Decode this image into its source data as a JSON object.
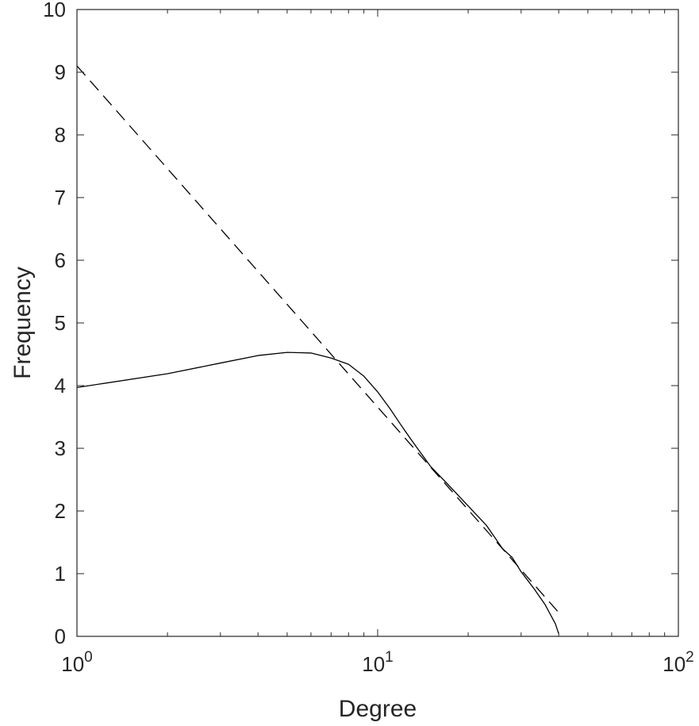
{
  "chart_data": {
    "type": "line",
    "title": "",
    "xlabel": "Degree",
    "ylabel": "Frequency",
    "x_scale": "log",
    "xlim": [
      1,
      100
    ],
    "ylim": [
      0,
      10
    ],
    "grid": false,
    "x_ticks": [
      {
        "value": 1,
        "base": "10",
        "exp": "0"
      },
      {
        "value": 10,
        "base": "10",
        "exp": "1"
      },
      {
        "value": 100,
        "base": "10",
        "exp": "2"
      }
    ],
    "y_ticks": [
      "0",
      "1",
      "2",
      "3",
      "4",
      "5",
      "6",
      "7",
      "8",
      "9",
      "10"
    ],
    "series": [
      {
        "style": "solid",
        "color": "#000000",
        "points": [
          [
            1,
            3.97
          ],
          [
            2,
            4.19
          ],
          [
            3,
            4.36
          ],
          [
            4,
            4.48
          ],
          [
            5,
            4.53
          ],
          [
            6,
            4.52
          ],
          [
            7,
            4.44
          ],
          [
            8,
            4.34
          ],
          [
            9,
            4.15
          ],
          [
            10,
            3.9
          ],
          [
            11,
            3.63
          ],
          [
            12,
            3.36
          ],
          [
            13,
            3.12
          ],
          [
            15,
            2.71
          ],
          [
            17,
            2.44
          ],
          [
            20,
            2.08
          ],
          [
            23,
            1.77
          ],
          [
            26,
            1.4
          ],
          [
            28,
            1.26
          ],
          [
            30,
            1.03
          ],
          [
            33,
            0.77
          ],
          [
            36,
            0.51
          ],
          [
            39,
            0.2
          ],
          [
            40,
            0.04
          ]
        ]
      },
      {
        "style": "dashed",
        "color": "#000000",
        "points": [
          [
            1,
            9.1
          ],
          [
            40,
            0.38
          ]
        ]
      }
    ]
  }
}
